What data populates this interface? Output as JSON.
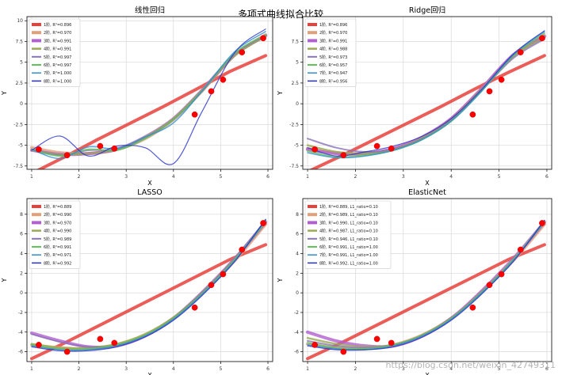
{
  "figure": {
    "suptitle": "多项式曲线拟合比较",
    "watermark": "https://blog.csdn.net/weixin_42749311"
  },
  "chart_data": [
    {
      "type": "line",
      "title": "线性回归",
      "xlabel": "X",
      "ylabel": "Y",
      "xlim": [
        0.9,
        6.1
      ],
      "ylim": [
        -7.9,
        10.5
      ],
      "xticks": [
        1,
        2,
        3,
        4,
        5,
        6
      ],
      "yticks": [
        -7.5,
        -5.0,
        -2.5,
        0.0,
        2.5,
        5.0,
        7.5,
        10.0
      ],
      "grid": true,
      "legend": "top-left",
      "scatter": {
        "x": [
          1.15,
          1.75,
          2.45,
          2.75,
          4.45,
          4.8,
          5.05,
          5.45,
          5.9
        ],
        "y": [
          -5.5,
          -6.2,
          -5.1,
          -5.4,
          -1.3,
          1.5,
          2.9,
          6.2,
          7.9
        ]
      },
      "series": [
        {
          "name": "1阶, R²=0.896",
          "color": "#e8413b",
          "width": 4,
          "values": [
            -8.4,
            -6.4,
            -4.3,
            -2.3,
            -0.3,
            1.8,
            3.9,
            5.8
          ]
        },
        {
          "name": "2阶, R²=0.970",
          "color": "#e0a07c",
          "width": 4,
          "values": [
            -5.3,
            -5.9,
            -6.0,
            -5.5,
            -4.2,
            -1.9,
            1.5,
            5.9,
            8.3
          ]
        },
        {
          "name": "3阶, R²=0.991",
          "color": "#b25fd0",
          "width": 4,
          "values": [
            -5.6,
            -6.1,
            -6.0,
            -5.5,
            -4.0,
            -1.8,
            1.6,
            5.9,
            8.2
          ]
        },
        {
          "name": "4阶, R²=0.991",
          "color": "#9aaa55",
          "width": 2.5,
          "values": [
            -5.6,
            -6.1,
            -6.0,
            -5.5,
            -4.0,
            -1.8,
            1.6,
            5.8,
            8.1
          ]
        },
        {
          "name": "5阶, R²=0.997",
          "color": "#8b73b6",
          "width": 2,
          "values": [
            -5.5,
            -6.2,
            -5.6,
            -5.5,
            -4.1,
            -1.9,
            1.5,
            6.0,
            8.2
          ]
        },
        {
          "name": "6阶, R²=0.997",
          "color": "#63c25a",
          "width": 2,
          "values": [
            -5.5,
            -6.3,
            -5.5,
            -5.6,
            -4.2,
            -1.9,
            1.5,
            6.1,
            8.3
          ]
        },
        {
          "name": "7阶, R²=1.000",
          "color": "#2f8fce",
          "width": 1.5,
          "values": [
            -5.5,
            -6.6,
            -5.2,
            -5.4,
            -4.0,
            -2.3,
            1.5,
            6.3,
            8.7
          ]
        },
        {
          "name": "8阶, R²=1.000",
          "color": "#2630c8",
          "width": 1.2,
          "values": [
            -5.6,
            -3.9,
            -6.3,
            -5.1,
            -5.3,
            -7.2,
            -1.0,
            6.2,
            9.0
          ]
        }
      ]
    },
    {
      "type": "line",
      "title": "Ridge回归",
      "xlabel": "X",
      "ylabel": "Y",
      "xlim": [
        0.9,
        6.1
      ],
      "ylim": [
        -7.9,
        10.5
      ],
      "xticks": [
        1,
        2,
        3,
        4,
        5,
        6
      ],
      "yticks": [
        -7.5,
        -5.0,
        -2.5,
        0.0,
        2.5,
        5.0,
        7.5
      ],
      "grid": true,
      "legend": "top-left",
      "scatter": {
        "x": [
          1.15,
          1.75,
          2.45,
          2.75,
          4.45,
          4.8,
          5.05,
          5.45,
          5.9
        ],
        "y": [
          -5.5,
          -6.2,
          -5.1,
          -5.4,
          -1.3,
          1.5,
          2.9,
          6.2,
          7.9
        ]
      },
      "series": [
        {
          "name": "1阶, R²=0.896",
          "color": "#e8413b",
          "width": 4,
          "values": [
            -8.2,
            -6.3,
            -4.3,
            -2.3,
            -0.3,
            1.8,
            3.8,
            5.8
          ]
        },
        {
          "name": "2阶, R²=0.970",
          "color": "#e0a07c",
          "width": 4,
          "values": [
            -5.4,
            -5.9,
            -6.0,
            -5.4,
            -4.1,
            -1.8,
            1.6,
            5.8,
            8.2
          ]
        },
        {
          "name": "3阶, R²=0.991",
          "color": "#b25fd0",
          "width": 4,
          "values": [
            -5.5,
            -6.0,
            -6.0,
            -5.4,
            -4.0,
            -1.8,
            1.6,
            5.9,
            8.1
          ]
        },
        {
          "name": "4阶, R²=0.988",
          "color": "#9aaa55",
          "width": 2.5,
          "values": [
            -5.0,
            -5.8,
            -6.0,
            -5.5,
            -4.1,
            -1.9,
            1.5,
            5.7,
            8.0
          ]
        },
        {
          "name": "5阶, R²=0.973",
          "color": "#8b73b6",
          "width": 2,
          "values": [
            -4.2,
            -5.3,
            -5.8,
            -5.5,
            -4.2,
            -2.0,
            1.4,
            5.5,
            7.8
          ]
        },
        {
          "name": "6阶, R²=0.957",
          "color": "#63c25a",
          "width": 2,
          "values": [
            -5.7,
            -6.4,
            -6.2,
            -5.6,
            -4.3,
            -2.1,
            1.3,
            5.8,
            8.5
          ]
        },
        {
          "name": "7阶, R²=0.947",
          "color": "#2f8fce",
          "width": 1.5,
          "values": [
            -5.9,
            -6.5,
            -6.3,
            -5.6,
            -4.3,
            -2.1,
            1.3,
            5.9,
            8.7
          ]
        },
        {
          "name": "8阶, R²=0.956",
          "color": "#2630c8",
          "width": 1.2,
          "values": [
            -5.3,
            -6.3,
            -5.8,
            -5.1,
            -3.9,
            -1.8,
            1.5,
            6.0,
            8.8
          ]
        }
      ]
    },
    {
      "type": "line",
      "title": "LASSO",
      "xlabel": "X",
      "ylabel": "Y",
      "xlim": [
        0.9,
        6.1
      ],
      "ylim": [
        -7.0,
        9.6
      ],
      "xticks": [
        1,
        2,
        3,
        4,
        5,
        6
      ],
      "yticks": [
        -6,
        -4,
        -2,
        0,
        2,
        4,
        6,
        8
      ],
      "grid": true,
      "legend": "top-left",
      "scatter": {
        "x": [
          1.15,
          1.75,
          2.45,
          2.75,
          4.45,
          4.8,
          5.05,
          5.45,
          5.9
        ],
        "y": [
          -5.3,
          -6.0,
          -4.7,
          -5.1,
          -1.5,
          0.8,
          1.9,
          4.4,
          7.1
        ]
      },
      "series": [
        {
          "name": "1阶, R²=0.889",
          "color": "#e8413b",
          "width": 4,
          "values": [
            -6.7,
            -5.1,
            -3.4,
            -1.7,
            -0.0,
            1.7,
            3.4,
            4.9
          ]
        },
        {
          "name": "2阶, R²=0.990",
          "color": "#e0a07c",
          "width": 4,
          "values": [
            -5.3,
            -5.6,
            -5.7,
            -5.3,
            -4.3,
            -2.6,
            -0.1,
            3.3,
            7.0
          ]
        },
        {
          "name": "3阶, R²=0.970",
          "color": "#b25fd0",
          "width": 4,
          "values": [
            -4.1,
            -4.9,
            -5.5,
            -5.4,
            -4.4,
            -2.6,
            0.0,
            3.5,
            7.2
          ]
        },
        {
          "name": "4阶, R²=0.990",
          "color": "#9aaa55",
          "width": 2.5,
          "values": [
            -5.2,
            -5.6,
            -5.6,
            -5.2,
            -4.2,
            -2.5,
            0.0,
            3.5,
            7.3
          ]
        },
        {
          "name": "5阶, R²=0.989",
          "color": "#8b73b6",
          "width": 2,
          "values": [
            -4.2,
            -5.0,
            -5.5,
            -5.4,
            -4.4,
            -2.6,
            0.0,
            3.5,
            7.4
          ]
        },
        {
          "name": "6阶, R²=0.991",
          "color": "#63c25a",
          "width": 2,
          "values": [
            -5.3,
            -5.7,
            -5.7,
            -5.3,
            -4.3,
            -2.6,
            -0.1,
            3.4,
            7.2
          ]
        },
        {
          "name": "7阶, R²=0.971",
          "color": "#2f8fce",
          "width": 1.5,
          "values": [
            -5.4,
            -5.8,
            -5.8,
            -5.4,
            -4.4,
            -2.7,
            -0.2,
            3.3,
            7.4
          ]
        },
        {
          "name": "8阶, R²=0.992",
          "color": "#2630c8",
          "width": 1.2,
          "values": [
            -5.5,
            -5.9,
            -5.9,
            -5.5,
            -4.5,
            -2.8,
            -0.3,
            3.2,
            7.5
          ]
        }
      ]
    },
    {
      "type": "line",
      "title": "ElasticNet",
      "xlabel": "X",
      "ylabel": "Y",
      "xlim": [
        0.9,
        6.1
      ],
      "ylim": [
        -7.0,
        9.6
      ],
      "xticks": [
        1,
        2,
        3,
        4,
        5,
        6
      ],
      "yticks": [
        -6,
        -4,
        -2,
        0,
        2,
        4,
        6,
        8
      ],
      "grid": true,
      "legend": "top-left",
      "scatter": {
        "x": [
          1.15,
          1.75,
          2.45,
          2.75,
          4.45,
          4.8,
          5.05,
          5.45,
          5.9
        ],
        "y": [
          -5.3,
          -6.0,
          -4.7,
          -5.1,
          -1.5,
          0.8,
          1.9,
          4.4,
          7.1
        ]
      },
      "series": [
        {
          "name": "1阶, R²=0.889, L1_ratio=0.10",
          "color": "#e8413b",
          "width": 4,
          "values": [
            -6.7,
            -5.1,
            -3.4,
            -1.7,
            -0.0,
            1.7,
            3.4,
            4.9
          ]
        },
        {
          "name": "2阶, R²=0.989, L1_ratio=0.10",
          "color": "#e0a07c",
          "width": 4,
          "values": [
            -5.2,
            -5.6,
            -5.7,
            -5.3,
            -4.3,
            -2.6,
            -0.1,
            3.3,
            7.0
          ]
        },
        {
          "name": "3阶, R²=0.990, L1_ratio=0.10",
          "color": "#b25fd0",
          "width": 4,
          "values": [
            -4.0,
            -4.9,
            -5.4,
            -5.4,
            -4.4,
            -2.6,
            0.0,
            3.5,
            7.2
          ]
        },
        {
          "name": "4阶, R²=0.987, L1_ratio=0.10",
          "color": "#9aaa55",
          "width": 2.5,
          "values": [
            -4.6,
            -5.2,
            -5.5,
            -5.3,
            -4.3,
            -2.6,
            -0.1,
            3.4,
            7.3
          ]
        },
        {
          "name": "5阶, R²=0.946, L1_ratio=0.10",
          "color": "#8b73b6",
          "width": 2,
          "values": [
            -4.9,
            -5.4,
            -5.6,
            -5.3,
            -4.3,
            -2.6,
            -0.1,
            3.4,
            7.3
          ]
        },
        {
          "name": "6阶, R²=0.991, L1_ratio=1.00",
          "color": "#63c25a",
          "width": 2,
          "values": [
            -5.1,
            -5.6,
            -5.7,
            -5.3,
            -4.3,
            -2.6,
            -0.1,
            3.4,
            7.2
          ]
        },
        {
          "name": "7阶, R²=0.991, L1_ratio=1.00",
          "color": "#2f8fce",
          "width": 1.5,
          "values": [
            -5.3,
            -5.7,
            -5.8,
            -5.4,
            -4.4,
            -2.7,
            -0.2,
            3.3,
            7.3
          ]
        },
        {
          "name": "8阶, R²=0.992, L1_ratio=1.00",
          "color": "#2630c8",
          "width": 1.2,
          "values": [
            -5.4,
            -5.8,
            -5.8,
            -5.5,
            -4.5,
            -2.8,
            -0.3,
            3.2,
            7.4
          ]
        }
      ]
    }
  ]
}
